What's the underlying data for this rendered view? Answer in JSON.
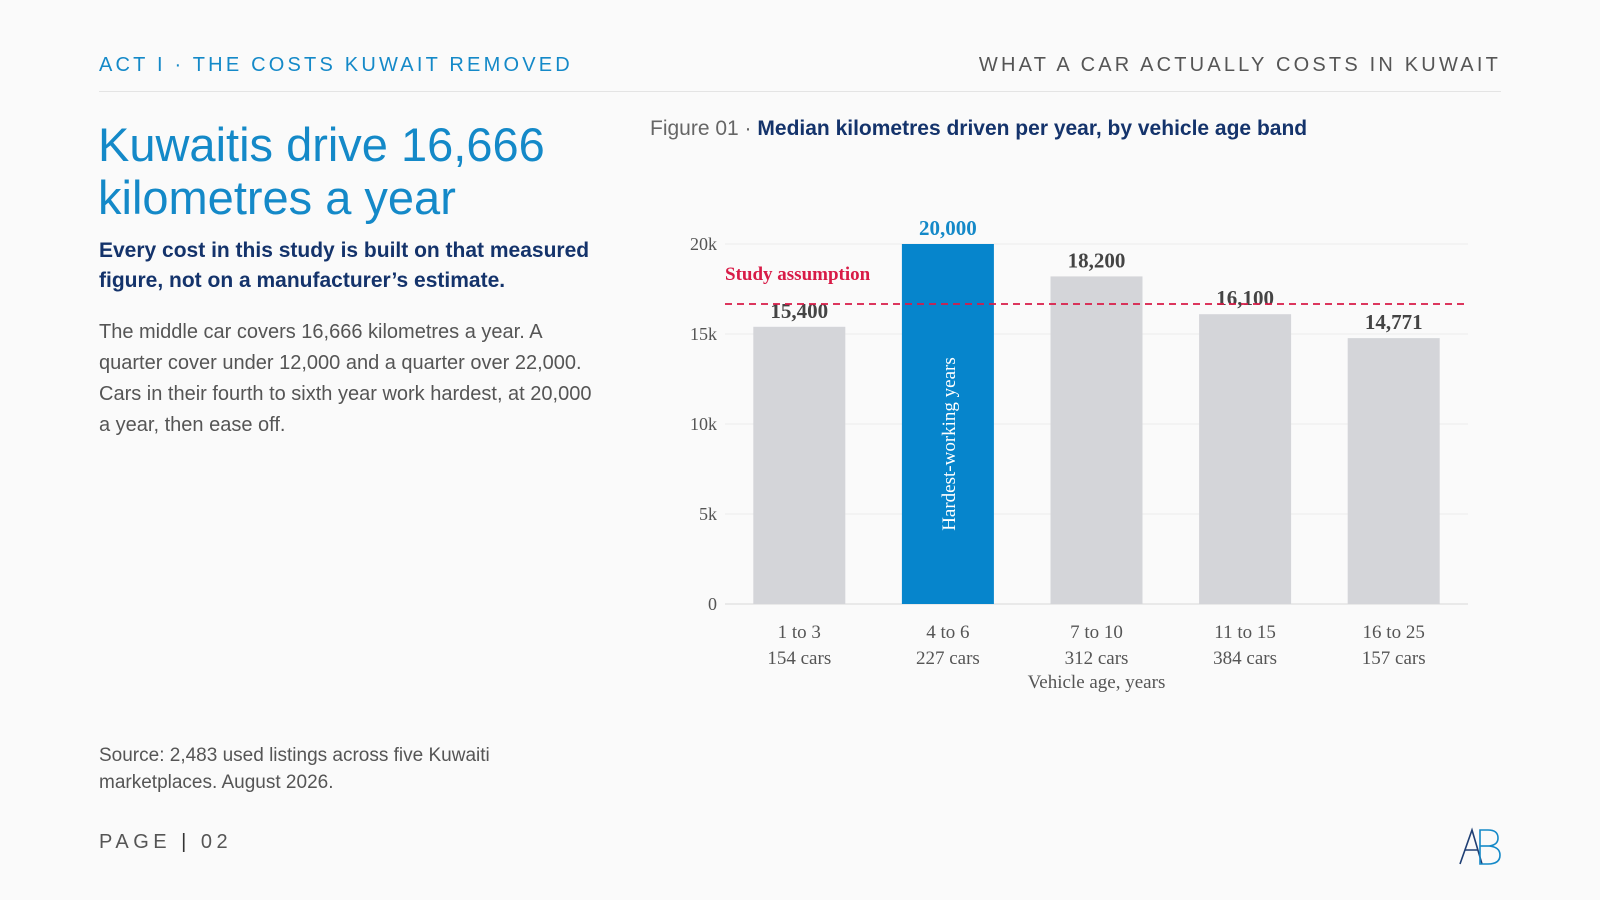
{
  "header": {
    "section": "ACT I · THE COSTS KUWAIT REMOVED",
    "report_title": "WHAT A CAR ACTUALLY COSTS IN KUWAIT"
  },
  "headline": "Kuwaitis drive 16,666 kilometres a year",
  "subhead": "Every cost in this study is built on that measured figure, not on a manufacturer’s estimate.",
  "body": "The middle car covers 16,666 kilometres a year. A quarter cover under 12,000 and a quarter over 22,000. Cars in their fourth to sixth year work hardest, at 20,000 a year, then ease off.",
  "source": "Source: 2,483 used listings across five Kuwaiti marketplaces. August 2026.",
  "footer": {
    "page_label": "PAGE",
    "page_sep": "|",
    "page_number": "02"
  },
  "figure": {
    "number": "Figure 01 ·",
    "title": "Median kilometres driven per year, by vehicle age band"
  },
  "chart_data": {
    "type": "bar",
    "categories": [
      "1 to 3",
      "4 to 6",
      "7 to 10",
      "11 to 15",
      "16 to 25"
    ],
    "sub_labels": [
      "154 cars",
      "227 cars",
      "312 cars",
      "384 cars",
      "157 cars"
    ],
    "values": [
      15400,
      20000,
      18200,
      16100,
      14771
    ],
    "value_labels": [
      "15,400",
      "20,000",
      "18,200",
      "16,100",
      "14,771"
    ],
    "highlight_index": 1,
    "highlight_annotation": "Hardest-working years",
    "reference_line": {
      "value": 16666,
      "label": "Study assumption"
    },
    "xlabel": "Vehicle age, years",
    "ylabel": "",
    "ylim": [
      0,
      20000
    ],
    "yticks": [
      0,
      5000,
      10000,
      15000,
      20000
    ],
    "ytick_labels": [
      "0",
      "5k",
      "10k",
      "15k",
      "20k"
    ],
    "grid": true,
    "colors": {
      "bar": "#d4d5d9",
      "highlight": "#0685cc",
      "reference": "#d81b47",
      "value_label": "#444444",
      "highlight_label": "#1489c8"
    }
  }
}
